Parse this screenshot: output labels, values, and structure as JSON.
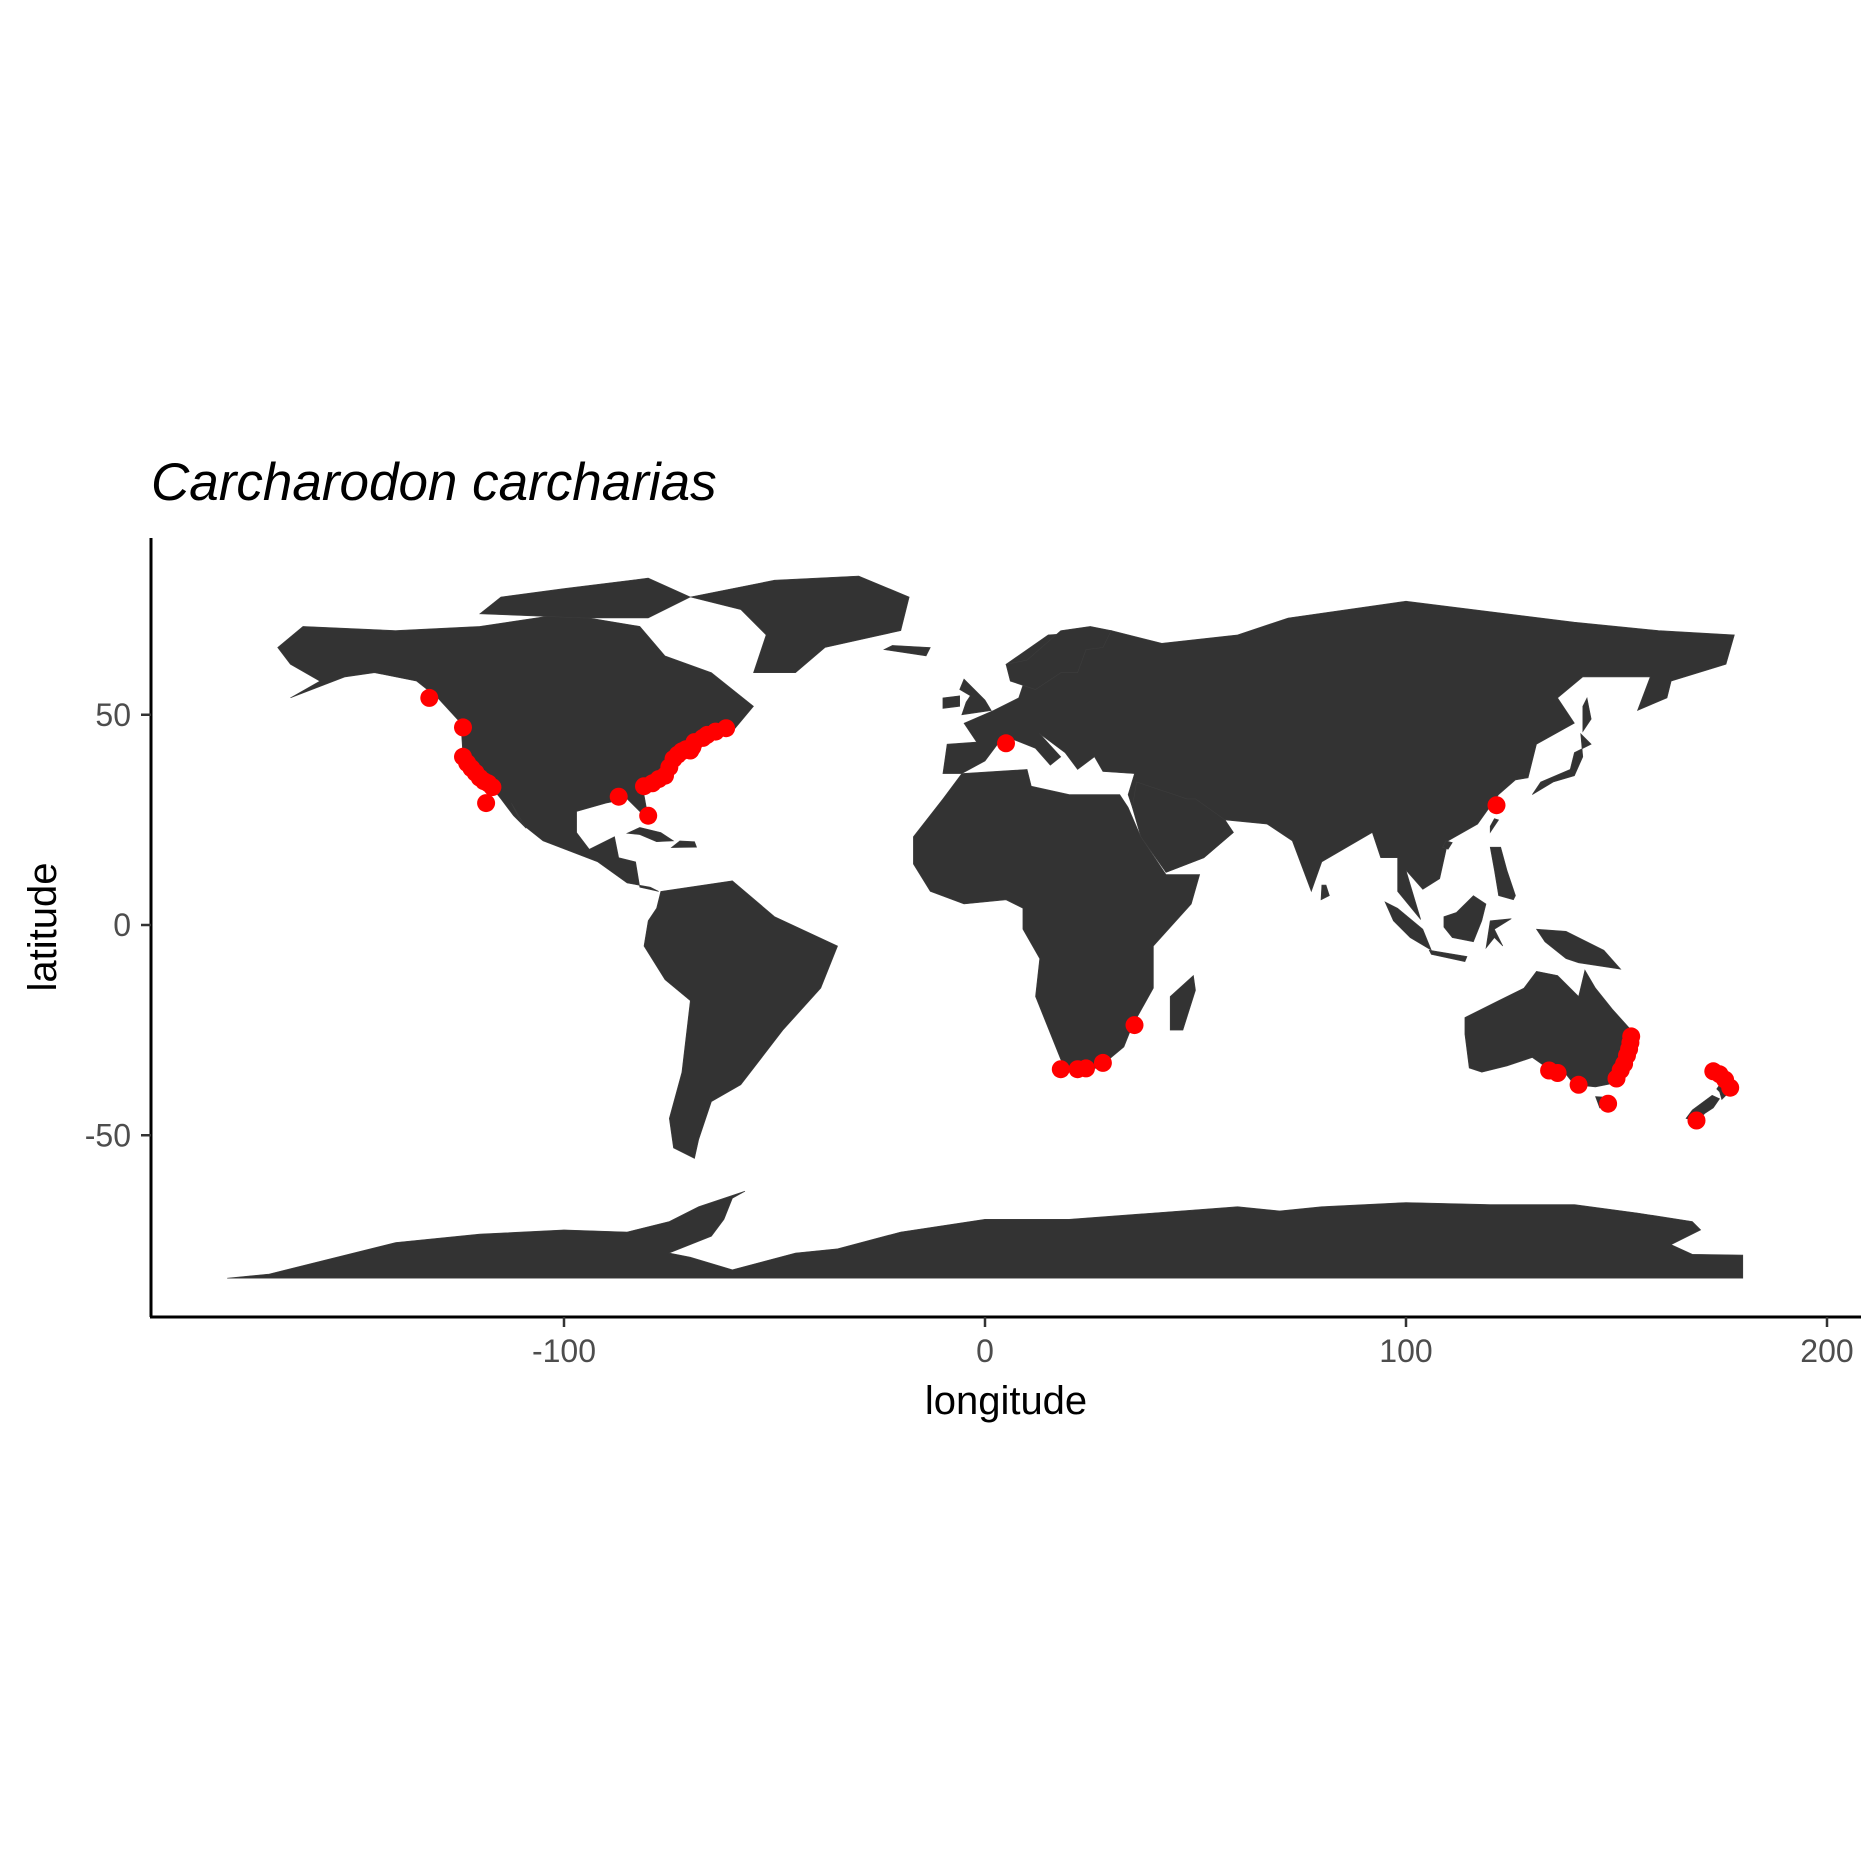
{
  "chart_data": {
    "type": "scatter",
    "title": "Carcharodon carcharias",
    "xlabel": "longitude",
    "ylabel": "latitude",
    "xlim": [
      -200,
      210
    ],
    "ylim": [
      -94,
      92
    ],
    "x_ticks": [
      -100,
      0,
      100,
      200
    ],
    "y_ticks": [
      -50,
      0,
      50
    ],
    "x_tick_labels": [
      "-100",
      "0",
      "100",
      "200"
    ],
    "y_tick_labels": [
      "-50",
      "0",
      "50"
    ],
    "grid": false,
    "legend": "none",
    "land_color": "#333333",
    "point_color": "#ff0000",
    "points": [
      {
        "lon": -132,
        "lat": 54
      },
      {
        "lon": -124,
        "lat": 47
      },
      {
        "lon": -124,
        "lat": 40
      },
      {
        "lon": -123,
        "lat": 38.5
      },
      {
        "lon": -122,
        "lat": 37.3
      },
      {
        "lon": -121,
        "lat": 36.2
      },
      {
        "lon": -120,
        "lat": 35
      },
      {
        "lon": -119,
        "lat": 34.2
      },
      {
        "lon": -118,
        "lat": 33.7
      },
      {
        "lon": -117,
        "lat": 32.8
      },
      {
        "lon": -118.5,
        "lat": 29
      },
      {
        "lon": -87,
        "lat": 30.5
      },
      {
        "lon": -81,
        "lat": 33
      },
      {
        "lon": -79,
        "lat": 33.7
      },
      {
        "lon": -77.5,
        "lat": 34.7
      },
      {
        "lon": -76,
        "lat": 35.5
      },
      {
        "lon": -75,
        "lat": 37.5
      },
      {
        "lon": -74,
        "lat": 39.5
      },
      {
        "lon": -73,
        "lat": 40.5
      },
      {
        "lon": -72,
        "lat": 41.3
      },
      {
        "lon": -71,
        "lat": 41.8
      },
      {
        "lon": -70,
        "lat": 41.5
      },
      {
        "lon": -69.5,
        "lat": 42.3
      },
      {
        "lon": -69,
        "lat": 43.5
      },
      {
        "lon": -67,
        "lat": 44.5
      },
      {
        "lon": -66,
        "lat": 45.2
      },
      {
        "lon": -64,
        "lat": 46
      },
      {
        "lon": -61.5,
        "lat": 46.8
      },
      {
        "lon": -80,
        "lat": 26
      },
      {
        "lon": 5,
        "lat": 43.2
      },
      {
        "lon": 18,
        "lat": -34.3
      },
      {
        "lon": 22,
        "lat": -34.3
      },
      {
        "lon": 24,
        "lat": -34.1
      },
      {
        "lon": 28,
        "lat": -32.8
      },
      {
        "lon": 35.5,
        "lat": -23.8
      },
      {
        "lon": 121.5,
        "lat": 28.5
      },
      {
        "lon": 134,
        "lat": -34.6
      },
      {
        "lon": 136,
        "lat": -35.2
      },
      {
        "lon": 141,
        "lat": -38
      },
      {
        "lon": 148,
        "lat": -42.5
      },
      {
        "lon": 150,
        "lat": -36.5
      },
      {
        "lon": 151,
        "lat": -34.5
      },
      {
        "lon": 151.8,
        "lat": -33
      },
      {
        "lon": 152.5,
        "lat": -31
      },
      {
        "lon": 153,
        "lat": -29.5
      },
      {
        "lon": 153.3,
        "lat": -28
      },
      {
        "lon": 153.5,
        "lat": -26.5
      },
      {
        "lon": 169,
        "lat": -46.5
      },
      {
        "lon": 173,
        "lat": -34.8
      },
      {
        "lon": 174.5,
        "lat": -35.5
      },
      {
        "lon": 175.8,
        "lat": -36.8
      },
      {
        "lon": 177,
        "lat": -38.7
      }
    ]
  }
}
